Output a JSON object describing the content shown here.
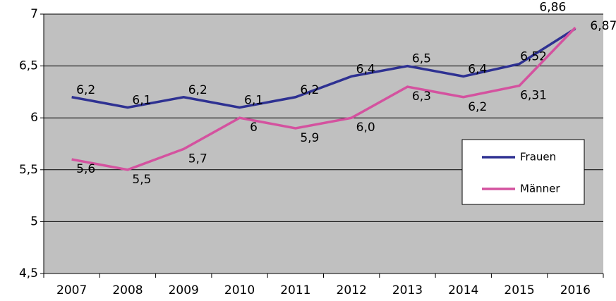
{
  "chart_data": {
    "type": "line",
    "categories": [
      "2007",
      "2008",
      "2009",
      "2010",
      "2011",
      "2012",
      "2013",
      "2014",
      "2015",
      "2016"
    ],
    "series": [
      {
        "name": "Frauen",
        "color": "#2e3192",
        "values": [
          6.2,
          6.1,
          6.2,
          6.1,
          6.2,
          6.4,
          6.5,
          6.4,
          6.52,
          6.86
        ],
        "value_labels": [
          "6,2",
          "6,1",
          "6,2",
          "6,1",
          "6,2",
          "6,4",
          "6,5",
          "6,4",
          "6,52",
          "6,86"
        ]
      },
      {
        "name": "Männer",
        "color": "#d4529f",
        "values": [
          5.6,
          5.5,
          5.7,
          6,
          5.9,
          6.0,
          6.3,
          6.2,
          6.31,
          6.87
        ],
        "value_labels": [
          "5,6",
          "5,5",
          "5,7",
          "6",
          "5,9",
          "6,0",
          "6,3",
          "6,2",
          "6,31",
          "6,87"
        ]
      }
    ],
    "ylim": [
      4.5,
      7
    ],
    "yticks": [
      {
        "value": 4.5,
        "label": "4,5"
      },
      5,
      {
        "value": 5.5,
        "label": "5,5"
      },
      6,
      {
        "value": 6.5,
        "label": "6,5"
      },
      7
    ],
    "grid": true,
    "plot_background": "#c0c0c0",
    "legend": "right"
  }
}
